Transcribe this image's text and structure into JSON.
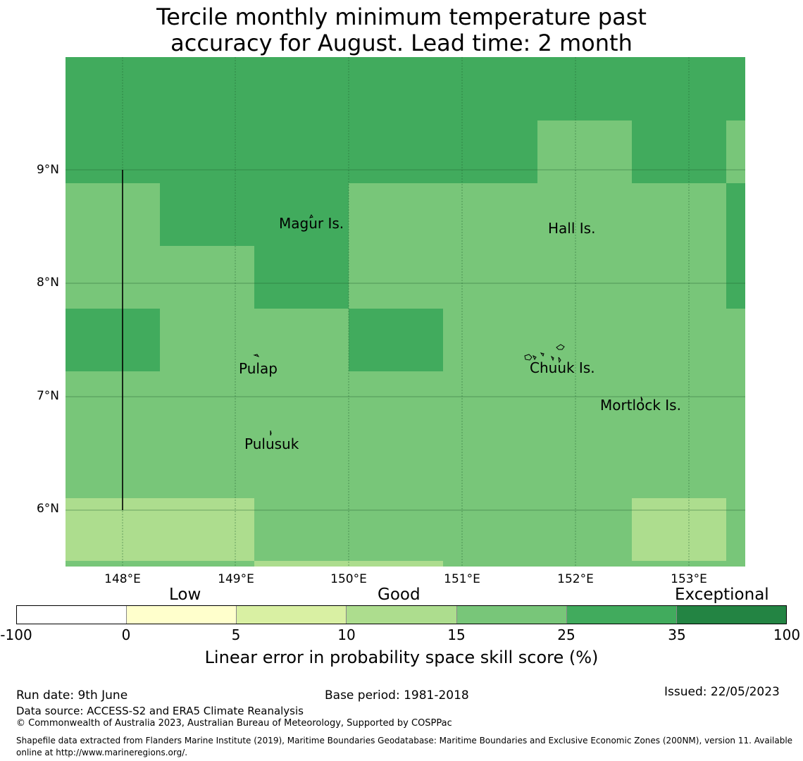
{
  "title_line1": "Tercile monthly minimum temperature past",
  "title_line2": "accuracy for August. Lead time: 2 month",
  "lat_labels": [
    "9°N",
    "8°N",
    "7°N",
    "6°N"
  ],
  "lon_labels": [
    "148°E",
    "149°E",
    "150°E",
    "151°E",
    "152°E",
    "153°E"
  ],
  "places": {
    "magur": "Magur Is.",
    "hall": "Hall Is.",
    "pulap": "Pulap",
    "chuuk": "Chuuk Is.",
    "mortlock": "Mortlock Is.",
    "pulusuk": "Pulusuk"
  },
  "colorbar": {
    "category_labels": {
      "low": "Low",
      "good": "Good",
      "exceptional": "Exceptional"
    },
    "ticks": [
      "-100",
      "0",
      "5",
      "10",
      "15",
      "25",
      "35",
      "100"
    ],
    "colors": [
      "#ffffff",
      "#ffffcc",
      "#d9f0a3",
      "#addd8e",
      "#78c679",
      "#41ab5d",
      "#238443"
    ],
    "label": "Linear error in probability space skill score (%)"
  },
  "grid_colors": {
    "a": "#41ab5d",
    "b": "#78c679",
    "c": "#addd8e"
  },
  "footer": {
    "run_date": "Run date: 9th June",
    "base_period": "Base period: 1981-2018",
    "issued": "Issued: 22/05/2023",
    "data_source": "Data source: ACCESS-S2 and ERA5 Climate Reanalysis",
    "copyright": "© Commonwealth of Australia 2023, Australian Bureau of Meteorology, Supported by COSPPac",
    "shapefile_line1": "Shapefile data extracted from Flanders Marine Institute (2019), Maritime Boundaries Geodatabase: Maritime Boundaries and Exclusive Economic Zones (200NM), version 11. Available",
    "shapefile_line2": "online at http://www.marineregions.org/."
  }
}
